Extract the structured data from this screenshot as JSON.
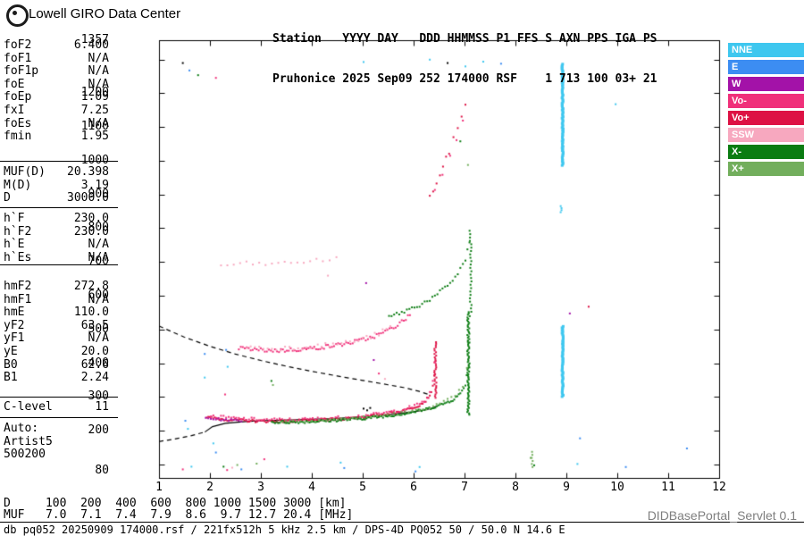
{
  "header": {
    "title": "Lowell GIRO Data Center",
    "station_line1": "Station   YYYY DAY   DDD HHMMSS P1 FFS S AXN PPS IGA PS",
    "station_line2": "Pruhonice 2025 Sep09 252 174000 RSF    1 713 100 03+ 21"
  },
  "params": {
    "groups": [
      {
        "rows": [
          {
            "label": "foF2",
            "value": "6.400"
          },
          {
            "label": "foF1",
            "value": "N/A"
          },
          {
            "label": "foF1p",
            "value": "N/A"
          },
          {
            "label": "foE",
            "value": "N/A"
          },
          {
            "label": "foEp",
            "value": "1.09"
          },
          {
            "label": "fxI",
            "value": "7.25"
          },
          {
            "label": "foEs",
            "value": "N/A"
          },
          {
            "label": "fmin",
            "value": "1.95"
          }
        ]
      },
      {
        "rows": [
          {
            "label": "MUF(D)",
            "value": "20.398"
          },
          {
            "label": "M(D)",
            "value": "3.19"
          },
          {
            "label": "D",
            "value": "3000.0"
          }
        ]
      },
      {
        "rows": [
          {
            "label": "h`F",
            "value": "230.0"
          },
          {
            "label": "h`F2",
            "value": "230.0"
          },
          {
            "label": "h`E",
            "value": "N/A"
          },
          {
            "label": "h`Es",
            "value": "N/A"
          }
        ]
      },
      {
        "rows": [
          {
            "label": "hmF2",
            "value": "272.8"
          },
          {
            "label": "hmF1",
            "value": "N/A"
          },
          {
            "label": "hmE",
            "value": "110.0"
          },
          {
            "label": "yF2",
            "value": "63.5"
          },
          {
            "label": "yF1",
            "value": "N/A"
          },
          {
            "label": "yE",
            "value": "20.0"
          },
          {
            "label": "B0",
            "value": "62.6"
          },
          {
            "label": "B1",
            "value": "2.24"
          }
        ]
      },
      {
        "rows": [
          {
            "label": "C-level",
            "value": "11"
          }
        ]
      },
      {
        "rows": [
          {
            "label": "Auto:"
          },
          {
            "label": "Artist5"
          },
          {
            "label": "500200"
          }
        ]
      }
    ]
  },
  "legend": {
    "items": [
      {
        "label": "NNE",
        "color": "#3EC7EF"
      },
      {
        "label": "E",
        "color": "#3C8DF2"
      },
      {
        "label": "W",
        "color": "#A312A8"
      },
      {
        "label": "Vo-",
        "color": "#F0307A"
      },
      {
        "label": "Vo+",
        "color": "#DD1144"
      },
      {
        "label": "SSW",
        "color": "#F7A8BF"
      },
      {
        "label": "X-",
        "color": "#0B7C12"
      },
      {
        "label": "X+",
        "color": "#72AE5C"
      }
    ]
  },
  "footer": {
    "distance_table": {
      "label_d": "D",
      "label_muf": "MUF",
      "distances": [
        "100",
        "200",
        "400",
        "600",
        "800",
        "1000",
        "1500",
        "3000"
      ],
      "muf_values": [
        "7.0",
        "7.1",
        "7.4",
        "7.9",
        "8.6",
        "9.7",
        "12.7",
        "20.4"
      ],
      "unit_d": "[km]",
      "unit_muf": "[MHz]"
    },
    "file_line": "db pq052 20250909 174000.rsf / 221fx512h 5 kHz 2.5 km / DPS-4D PQ052 50 / 50.0 N 14.6 E",
    "servlet": "DIDBasePortal_Servlet 0.1"
  },
  "chart_data": {
    "type": "scatter",
    "x_axis": {
      "unit": "MHz",
      "min": 1,
      "max": 12,
      "ticks": [
        1,
        2,
        3,
        4,
        5,
        6,
        7,
        8,
        9,
        10,
        11,
        12
      ]
    },
    "y_axis": {
      "unit": "km",
      "min": 60,
      "max": 1357,
      "tick_labels": [
        1357,
        1200,
        1100,
        1000,
        900,
        800,
        700,
        600,
        500,
        400,
        300,
        200,
        80
      ],
      "tick_step": 100
    },
    "colors": {
      "NNE": "#3EC7EF",
      "E": "#3C8DF2",
      "W": "#A312A8",
      "Vo-": "#F0307A",
      "Vo+": "#DD1144",
      "SSW": "#F7A8BF",
      "X-": "#0B7C12",
      "X+": "#72AE5C",
      "black": "#000000"
    },
    "curves": [
      {
        "name": "muf-transmission-curve",
        "style": "dashed",
        "points": [
          [
            1.0,
            510
          ],
          [
            1.5,
            477
          ],
          [
            2.0,
            450
          ],
          [
            2.5,
            427
          ],
          [
            3.0,
            408
          ],
          [
            3.5,
            391
          ],
          [
            4.0,
            376
          ],
          [
            4.5,
            362
          ],
          [
            5.0,
            349
          ],
          [
            5.5,
            336
          ],
          [
            5.8,
            328
          ],
          [
            6.1,
            317
          ],
          [
            6.3,
            307
          ]
        ]
      },
      {
        "name": "profile-extrapolation",
        "style": "dashed",
        "points": [
          [
            1.0,
            168
          ],
          [
            1.3,
            175
          ],
          [
            1.6,
            184
          ],
          [
            1.9,
            196
          ]
        ]
      },
      {
        "name": "true-height-profile",
        "style": "solid",
        "points": [
          [
            1.9,
            196
          ],
          [
            2.05,
            212
          ],
          [
            2.3,
            222
          ],
          [
            2.7,
            227
          ],
          [
            3.1,
            230
          ],
          [
            3.6,
            232
          ],
          [
            4.0,
            234
          ],
          [
            4.4,
            236
          ],
          [
            4.8,
            239
          ],
          [
            5.2,
            244
          ],
          [
            5.6,
            249
          ],
          [
            6.0,
            256
          ],
          [
            6.2,
            261
          ],
          [
            6.35,
            266
          ],
          [
            6.45,
            273
          ]
        ]
      }
    ],
    "traces": [
      {
        "name": "F-trace-O-mode",
        "color": "Vo+",
        "step": 0.03,
        "jitter": 4,
        "points": [
          [
            1.92,
            242
          ],
          [
            2.2,
            237
          ],
          [
            2.6,
            233
          ],
          [
            3.0,
            231
          ],
          [
            3.5,
            231
          ],
          [
            4.0,
            233
          ],
          [
            4.5,
            237
          ],
          [
            5.0,
            243
          ],
          [
            5.35,
            250
          ],
          [
            5.65,
            258
          ],
          [
            5.9,
            267
          ],
          [
            6.1,
            279
          ],
          [
            6.22,
            292
          ],
          [
            6.3,
            308
          ],
          [
            6.36,
            332
          ],
          [
            6.39,
            365
          ],
          [
            6.41,
            412
          ],
          [
            6.43,
            462
          ]
        ]
      },
      {
        "name": "F-trace-O-doppler",
        "color": "Vo-",
        "step": 0.05,
        "jitter": 5,
        "points": [
          [
            2.0,
            245
          ],
          [
            2.5,
            239
          ],
          [
            3.0,
            235
          ],
          [
            3.6,
            235
          ],
          [
            4.2,
            238
          ],
          [
            4.8,
            244
          ],
          [
            5.3,
            252
          ],
          [
            5.7,
            263
          ],
          [
            6.0,
            275
          ],
          [
            6.2,
            291
          ],
          [
            6.3,
            313
          ],
          [
            6.36,
            348
          ],
          [
            6.4,
            405
          ],
          [
            6.42,
            458
          ]
        ]
      },
      {
        "name": "F-trace-start-west",
        "color": "W",
        "step": 0.05,
        "jitter": 3,
        "points": [
          [
            1.9,
            240
          ],
          [
            2.15,
            236
          ],
          [
            2.4,
            234
          ],
          [
            2.65,
            232
          ]
        ]
      },
      {
        "name": "F-trace-X-mode",
        "color": "X-",
        "step": 0.03,
        "jitter": 4,
        "points": [
          [
            3.2,
            228
          ],
          [
            3.6,
            228
          ],
          [
            4.0,
            230
          ],
          [
            4.5,
            234
          ],
          [
            5.0,
            239
          ],
          [
            5.5,
            247
          ],
          [
            5.9,
            256
          ],
          [
            6.2,
            265
          ],
          [
            6.5,
            278
          ],
          [
            6.75,
            294
          ],
          [
            6.9,
            312
          ],
          [
            7.0,
            340
          ],
          [
            7.05,
            390
          ],
          [
            7.08,
            465
          ],
          [
            7.1,
            555
          ]
        ]
      },
      {
        "name": "F-trace-X-doppler",
        "color": "X+",
        "step": 0.07,
        "jitter": 4,
        "points": [
          [
            3.4,
            231
          ],
          [
            4.2,
            233
          ],
          [
            5.0,
            242
          ],
          [
            5.6,
            252
          ],
          [
            6.1,
            263
          ],
          [
            6.5,
            282
          ],
          [
            6.8,
            305
          ],
          [
            6.95,
            335
          ],
          [
            7.03,
            385
          ],
          [
            7.07,
            450
          ]
        ]
      },
      {
        "name": "second-hop-O",
        "color": "Vo-",
        "step": 0.04,
        "jitter": 6,
        "points": [
          [
            2.55,
            448
          ],
          [
            2.9,
            442
          ],
          [
            3.3,
            440
          ],
          [
            3.8,
            444
          ],
          [
            4.3,
            452
          ],
          [
            4.7,
            462
          ],
          [
            5.0,
            472
          ],
          [
            5.3,
            487
          ],
          [
            5.55,
            505
          ],
          [
            5.75,
            525
          ],
          [
            5.95,
            550
          ]
        ]
      },
      {
        "name": "second-hop-O-light",
        "color": "SSW",
        "step": 0.08,
        "jitter": 7,
        "points": [
          [
            2.7,
            452
          ],
          [
            3.2,
            446
          ],
          [
            3.8,
            450
          ],
          [
            4.4,
            458
          ],
          [
            4.9,
            470
          ],
          [
            5.3,
            490
          ],
          [
            5.6,
            516
          ]
        ]
      },
      {
        "name": "second-hop-X",
        "color": "X-",
        "step": 0.05,
        "jitter": 6,
        "points": [
          [
            5.5,
            540
          ],
          [
            5.8,
            556
          ],
          [
            6.1,
            575
          ],
          [
            6.4,
            600
          ],
          [
            6.65,
            632
          ],
          [
            6.85,
            668
          ],
          [
            7.0,
            710
          ],
          [
            7.08,
            760
          ],
          [
            7.12,
            800
          ]
        ]
      },
      {
        "name": "third-hop",
        "color": "SSW",
        "step": 0.12,
        "jitter": 6,
        "points": [
          [
            2.2,
            692
          ],
          [
            2.7,
            698
          ],
          [
            3.2,
            696
          ],
          [
            3.7,
            702
          ],
          [
            4.2,
            708
          ],
          [
            4.6,
            715
          ]
        ]
      },
      {
        "name": "high-multiple-red",
        "color": "Vo+",
        "step": 0.07,
        "jitter": 8,
        "points": [
          [
            6.3,
            895
          ],
          [
            6.5,
            960
          ],
          [
            6.68,
            1030
          ],
          [
            6.85,
            1100
          ],
          [
            7.0,
            1170
          ],
          [
            7.1,
            1235
          ]
        ]
      },
      {
        "name": "high-multiple-pink",
        "color": "Vo-",
        "step": 0.12,
        "jitter": 10,
        "points": [
          [
            6.4,
            920
          ],
          [
            6.7,
            1010
          ],
          [
            6.95,
            1120
          ],
          [
            7.1,
            1220
          ]
        ]
      }
    ],
    "columns": [
      {
        "f": 6.41,
        "from": 300,
        "to": 465,
        "color": "Vo+",
        "step": 5,
        "fjit": 0.02,
        "size": 2
      },
      {
        "f": 7.06,
        "from": 250,
        "to": 555,
        "color": "X-",
        "step": 4,
        "fjit": 0.025,
        "size": 2
      },
      {
        "f": 7.1,
        "from": 555,
        "to": 800,
        "color": "X-",
        "step": 10,
        "fjit": 0.02,
        "size": 2
      },
      {
        "f": 8.9,
        "from": 990,
        "to": 1290,
        "color": "NNE",
        "step": 4,
        "fjit": 0.012,
        "size": 3
      },
      {
        "f": 8.9,
        "from": 305,
        "to": 515,
        "color": "NNE",
        "step": 4,
        "fjit": 0.012,
        "size": 3
      },
      {
        "f": 8.88,
        "from": 850,
        "to": 868,
        "color": "NNE",
        "step": 6,
        "fjit": 0.01,
        "size": 2
      },
      {
        "f": 8.32,
        "from": 95,
        "to": 140,
        "color": "X+",
        "step": 9,
        "fjit": 0.02,
        "size": 2
      }
    ],
    "noise_dots": [
      [
        1.45,
        1292,
        "black"
      ],
      [
        1.58,
        1270,
        "E"
      ],
      [
        1.75,
        1256,
        "X-"
      ],
      [
        2.1,
        1248,
        "Vo-"
      ],
      [
        5.0,
        1295,
        "NNE"
      ],
      [
        6.65,
        1292,
        "black"
      ],
      [
        6.3,
        1302,
        "NNE"
      ],
      [
        7.0,
        1282,
        "NNE"
      ],
      [
        7.35,
        1296,
        "NNE"
      ],
      [
        7.7,
        1290,
        "E"
      ],
      [
        9.95,
        1170,
        "NNE"
      ],
      [
        1.5,
        232,
        "E"
      ],
      [
        1.55,
        208,
        "NNE"
      ],
      [
        1.88,
        430,
        "E"
      ],
      [
        1.88,
        360,
        "NNE"
      ],
      [
        2.3,
        442,
        "E"
      ],
      [
        2.33,
        392,
        "NNE"
      ],
      [
        2.28,
        310,
        "Vo-"
      ],
      [
        1.62,
        96,
        "NNE"
      ],
      [
        1.45,
        88,
        "Vo-"
      ],
      [
        2.25,
        96,
        "X-"
      ],
      [
        2.32,
        86,
        "Vo-"
      ],
      [
        2.42,
        93,
        "SSW"
      ],
      [
        2.52,
        101,
        "X+"
      ],
      [
        2.6,
        88,
        "E"
      ],
      [
        2.9,
        105,
        "X+"
      ],
      [
        3.05,
        118,
        "Vo-"
      ],
      [
        3.5,
        96,
        "NNE"
      ],
      [
        3.19,
        350,
        "X-"
      ],
      [
        3.22,
        338,
        "X+"
      ],
      [
        4.62,
        92,
        "E"
      ],
      [
        4.55,
        108,
        "NNE"
      ],
      [
        5.3,
        372,
        "Vo-"
      ],
      [
        5.42,
        356,
        "SSW"
      ],
      [
        5.2,
        412,
        "W"
      ],
      [
        5.05,
        640,
        "W"
      ],
      [
        4.3,
        662,
        "SSW"
      ],
      [
        6.02,
        82,
        "E"
      ],
      [
        6.1,
        95,
        "NNE"
      ],
      [
        8.28,
        122,
        "X+"
      ],
      [
        8.35,
        100,
        "X-"
      ],
      [
        9.25,
        180,
        "E"
      ],
      [
        9.2,
        104,
        "NNE"
      ],
      [
        9.42,
        570,
        "Vo+"
      ],
      [
        9.05,
        550,
        "W"
      ],
      [
        6.9,
        1060,
        "X-"
      ],
      [
        7.05,
        990,
        "X+"
      ],
      [
        10.15,
        95,
        "E"
      ],
      [
        11.35,
        150,
        "E"
      ],
      [
        5.0,
        268,
        "black"
      ],
      [
        5.07,
        263,
        "black"
      ],
      [
        5.13,
        270,
        "black"
      ],
      [
        2.05,
        165,
        "NNE"
      ],
      [
        2.1,
        138,
        "E"
      ]
    ]
  }
}
